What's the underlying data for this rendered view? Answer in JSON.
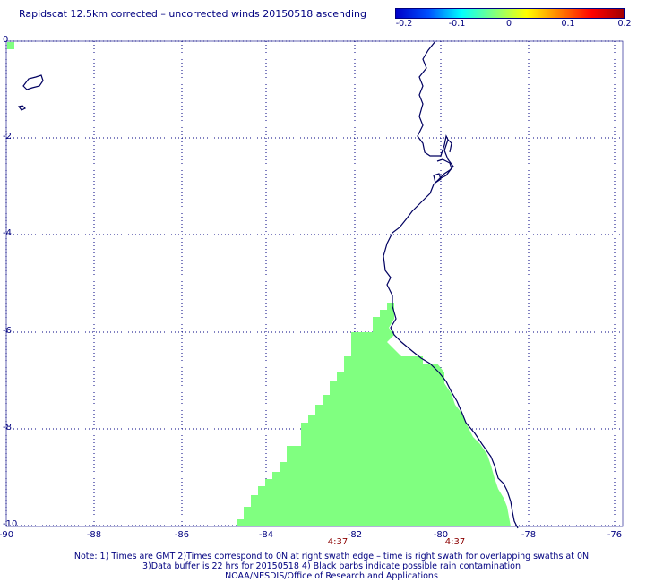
{
  "title": "Rapidscat 12.5km corrected – uncorrected winds 20150518 ascending",
  "colorbar": {
    "labels": [
      "-0.2",
      "-0.1",
      "0",
      "0.1",
      "0.2"
    ],
    "stops": [
      "#0000c8",
      "#0050ff",
      "#00ffff",
      "#80ff80",
      "#ffff00",
      "#ff8000",
      "#ff0000",
      "#a00000"
    ]
  },
  "axes": {
    "x_ticks": [
      "-90",
      "-88",
      "-86",
      "-84",
      "-82",
      "-80",
      "-78",
      "-76"
    ],
    "y_ticks": [
      "0",
      "-2",
      "-4",
      "-6",
      "-8",
      "-10"
    ],
    "xlim": [
      -90,
      -75.5
    ],
    "ylim": [
      -10,
      0
    ],
    "grid": true,
    "grid_color": "#000080"
  },
  "swath": {
    "color": "#80ff80",
    "time_labels": [
      {
        "lon": -82.3,
        "text": "4:37"
      },
      {
        "lon": -79.75,
        "text": "4:37"
      }
    ]
  },
  "coast_color": "#000060",
  "footer": {
    "line1": "Note: 1) Times are GMT 2)Times correspond to 0N at right swath edge – time is right swath for overlapping swaths at 0N",
    "line2": "3)Data buffer is 22 hrs for 20150518 4) Black barbs indicate possible rain contamination",
    "line3": "NOAA/NESDIS/Office of Research and Applications"
  }
}
